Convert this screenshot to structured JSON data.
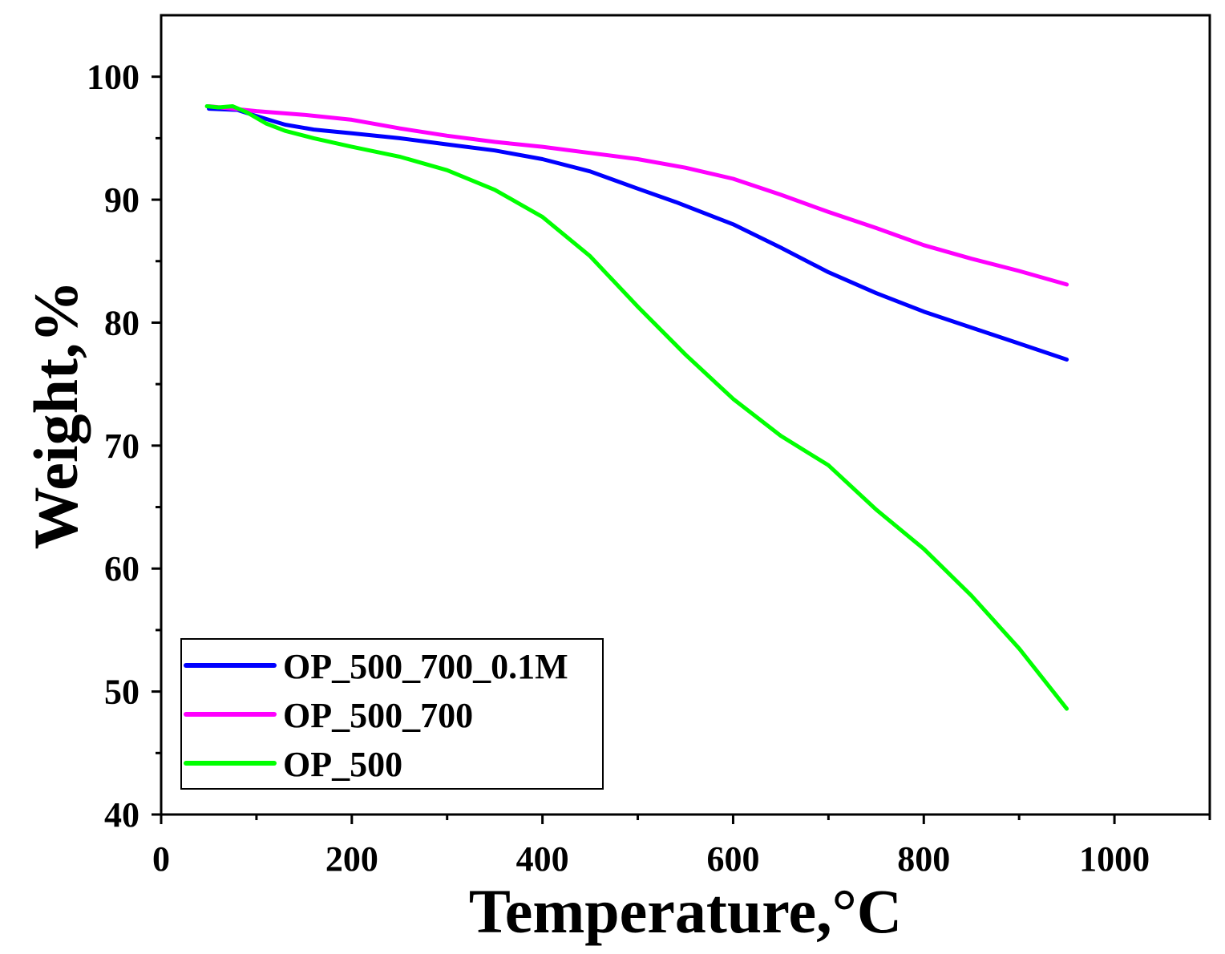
{
  "chart_data": {
    "type": "line",
    "xlabel": "Temperature,°C",
    "ylabel": "Weight,%",
    "xlim": [
      0,
      1100
    ],
    "ylim": [
      40,
      105
    ],
    "x_ticks": [
      0,
      200,
      400,
      600,
      800,
      1000
    ],
    "x_tick_labels": [
      "0",
      "200",
      "400",
      "600",
      "800",
      "1000"
    ],
    "x_minor_ticks": [
      100,
      300,
      500,
      700,
      900,
      1100
    ],
    "y_ticks": [
      40,
      50,
      60,
      70,
      80,
      90,
      100
    ],
    "y_tick_labels": [
      "40",
      "50",
      "60",
      "70",
      "80",
      "90",
      "100"
    ],
    "y_minor_ticks": [
      45,
      55,
      65,
      75,
      85,
      95
    ],
    "legend_position": "bottom-left",
    "series": [
      {
        "name": "OP_500_700_0.1M",
        "color": "#0000ff",
        "x": [
          50,
          80,
          100,
          130,
          160,
          200,
          250,
          300,
          350,
          400,
          450,
          500,
          540,
          600,
          650,
          700,
          750,
          800,
          850,
          900,
          950
        ],
        "y": [
          97.4,
          97.3,
          96.8,
          96.1,
          95.7,
          95.4,
          95.0,
          94.5,
          94.0,
          93.3,
          92.3,
          90.9,
          89.8,
          88.0,
          86.1,
          84.1,
          82.4,
          80.9,
          79.6,
          78.3,
          77.0
        ]
      },
      {
        "name": "OP_500_700",
        "color": "#ff00ff",
        "x": [
          50,
          100,
          150,
          200,
          250,
          300,
          350,
          400,
          450,
          500,
          550,
          600,
          650,
          700,
          750,
          800,
          850,
          900,
          950
        ],
        "y": [
          97.6,
          97.2,
          96.9,
          96.5,
          95.8,
          95.2,
          94.7,
          94.3,
          93.8,
          93.3,
          92.6,
          91.7,
          90.4,
          89.0,
          87.7,
          86.3,
          85.2,
          84.2,
          83.1
        ]
      },
      {
        "name": "OP_500",
        "color": "#00ff00",
        "x": [
          48,
          60,
          75,
          90,
          110,
          130,
          160,
          200,
          250,
          300,
          350,
          400,
          450,
          500,
          550,
          600,
          650,
          700,
          750,
          800,
          850,
          900,
          950
        ],
        "y": [
          97.6,
          97.5,
          97.6,
          97.1,
          96.2,
          95.6,
          95.0,
          94.3,
          93.5,
          92.4,
          90.8,
          88.6,
          85.4,
          81.3,
          77.4,
          73.8,
          70.8,
          68.4,
          64.8,
          61.6,
          57.8,
          53.5,
          48.6
        ]
      }
    ]
  }
}
